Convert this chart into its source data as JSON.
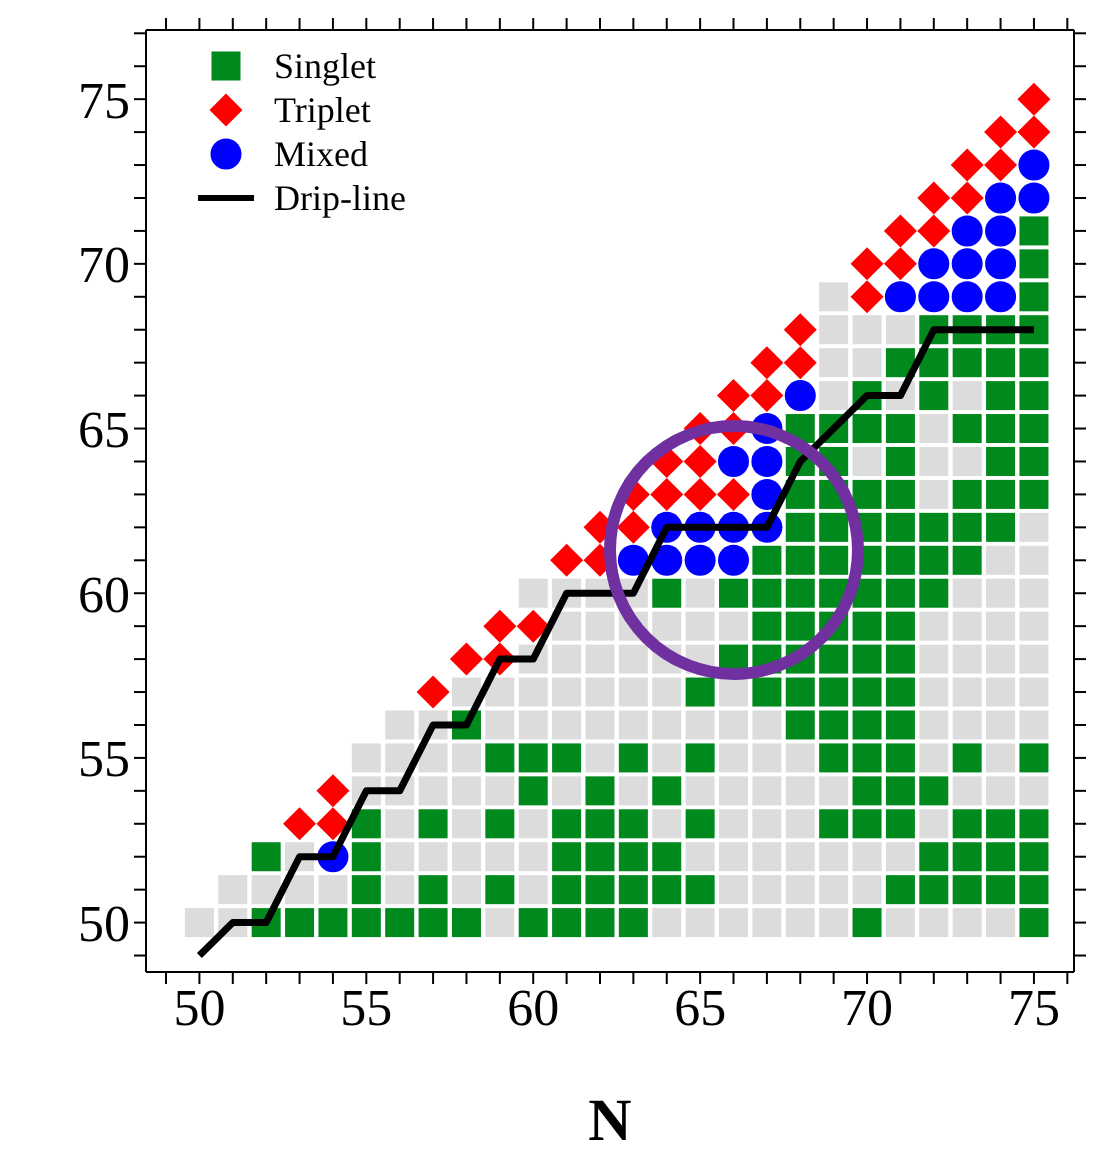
{
  "chart_data": {
    "type": "scatter",
    "xlabel": "N",
    "xlim": [
      48.4,
      76.2
    ],
    "ylim": [
      48.5,
      77.1
    ],
    "xticks": [
      {
        "value": 49,
        "label": null
      },
      50,
      {
        "value": 51,
        "label": null
      },
      {
        "value": 52,
        "label": null
      },
      {
        "value": 53,
        "label": null
      },
      {
        "value": 54,
        "label": null
      },
      55,
      {
        "value": 56,
        "label": null
      },
      {
        "value": 57,
        "label": null
      },
      {
        "value": 58,
        "label": null
      },
      {
        "value": 59,
        "label": null
      },
      60,
      {
        "value": 61,
        "label": null
      },
      {
        "value": 62,
        "label": null
      },
      {
        "value": 63,
        "label": null
      },
      {
        "value": 64,
        "label": null
      },
      65,
      {
        "value": 66,
        "label": null
      },
      {
        "value": 67,
        "label": null
      },
      {
        "value": 68,
        "label": null
      },
      {
        "value": 69,
        "label": null
      },
      70,
      {
        "value": 71,
        "label": null
      },
      {
        "value": 72,
        "label": null
      },
      {
        "value": 73,
        "label": null
      },
      {
        "value": 74,
        "label": null
      },
      75,
      {
        "value": 76,
        "label": null
      }
    ],
    "yticks": [
      {
        "value": 49,
        "label": null
      },
      50,
      {
        "value": 51,
        "label": null
      },
      {
        "value": 52,
        "label": null
      },
      {
        "value": 53,
        "label": null
      },
      {
        "value": 54,
        "label": null
      },
      55,
      {
        "value": 56,
        "label": null
      },
      {
        "value": 57,
        "label": null
      },
      {
        "value": 58,
        "label": null
      },
      {
        "value": 59,
        "label": null
      },
      60,
      {
        "value": 61,
        "label": null
      },
      {
        "value": 62,
        "label": null
      },
      {
        "value": 63,
        "label": null
      },
      {
        "value": 64,
        "label": null
      },
      65,
      {
        "value": 66,
        "label": null
      },
      {
        "value": 67,
        "label": null
      },
      {
        "value": 68,
        "label": null
      },
      {
        "value": 69,
        "label": null
      },
      70,
      {
        "value": 71,
        "label": null
      },
      {
        "value": 72,
        "label": null
      },
      {
        "value": 73,
        "label": null
      },
      {
        "value": 74,
        "label": null
      },
      75,
      {
        "value": 76,
        "label": null
      },
      {
        "value": 77,
        "label": null
      }
    ],
    "legend": "top left",
    "grid": false,
    "series": [
      {
        "marker": "square",
        "color": "#dcdcdc",
        "x": [
          50,
          51,
          59,
          64,
          65,
          66,
          67,
          68,
          69,
          71,
          72,
          73,
          74,
          51,
          52,
          53,
          54,
          56,
          58,
          60,
          66,
          67,
          68,
          69,
          70,
          53,
          56,
          57,
          58,
          59,
          60,
          65,
          66,
          67,
          68,
          69,
          70,
          71,
          56,
          58,
          60,
          64,
          66,
          67,
          68,
          72,
          55,
          56,
          57,
          58,
          59,
          61,
          63,
          65,
          66,
          67,
          68,
          69,
          73,
          74,
          75,
          55,
          56,
          57,
          58,
          62,
          64,
          66,
          67,
          68,
          72,
          74,
          56,
          57,
          59,
          60,
          61,
          62,
          63,
          64,
          65,
          66,
          67,
          72,
          73,
          74,
          75,
          58,
          59,
          60,
          61,
          62,
          63,
          64,
          66,
          72,
          73,
          74,
          75,
          60,
          61,
          62,
          63,
          64,
          65,
          72,
          73,
          74,
          75,
          61,
          62,
          63,
          64,
          65,
          66,
          72,
          73,
          74,
          75,
          60,
          61,
          62,
          63,
          65,
          73,
          74,
          75,
          74,
          75,
          75,
          72,
          70,
          72,
          73,
          72,
          69,
          71,
          73,
          69,
          70,
          69,
          70,
          71,
          69
        ],
        "values": [
          50,
          50,
          50,
          50,
          50,
          50,
          50,
          50,
          50,
          50,
          50,
          50,
          50,
          51,
          51,
          51,
          51,
          51,
          51,
          51,
          51,
          51,
          51,
          51,
          51,
          52,
          52,
          52,
          52,
          52,
          52,
          52,
          52,
          52,
          52,
          52,
          52,
          52,
          53,
          53,
          53,
          53,
          53,
          53,
          53,
          53,
          54,
          54,
          54,
          54,
          54,
          54,
          54,
          54,
          54,
          54,
          54,
          54,
          54,
          54,
          54,
          55,
          55,
          55,
          55,
          55,
          55,
          55,
          55,
          55,
          55,
          55,
          56,
          56,
          56,
          56,
          56,
          56,
          56,
          56,
          56,
          56,
          56,
          56,
          56,
          56,
          56,
          57,
          57,
          57,
          57,
          57,
          57,
          57,
          57,
          57,
          57,
          57,
          57,
          58,
          58,
          58,
          58,
          58,
          58,
          58,
          58,
          58,
          58,
          59,
          59,
          59,
          59,
          59,
          59,
          59,
          59,
          59,
          59,
          60,
          60,
          60,
          60,
          60,
          60,
          60,
          60,
          61,
          61,
          62,
          63,
          64,
          64,
          64,
          65,
          66,
          66,
          66,
          67,
          67,
          68,
          68,
          68,
          69
        ]
      },
      {
        "name": "Singlet",
        "marker": "square",
        "color": "#008a1e",
        "x": [
          52,
          53,
          54,
          55,
          56,
          57,
          58,
          60,
          61,
          62,
          63,
          70,
          75,
          55,
          57,
          59,
          61,
          62,
          63,
          64,
          65,
          71,
          72,
          73,
          74,
          75,
          52,
          55,
          61,
          62,
          63,
          64,
          72,
          73,
          74,
          75,
          55,
          57,
          59,
          61,
          62,
          63,
          65,
          69,
          70,
          71,
          73,
          74,
          75,
          60,
          62,
          64,
          70,
          71,
          72,
          59,
          60,
          61,
          63,
          65,
          69,
          70,
          71,
          73,
          75,
          58,
          68,
          69,
          70,
          71,
          65,
          67,
          68,
          69,
          70,
          71,
          66,
          67,
          68,
          69,
          70,
          71,
          67,
          68,
          69,
          70,
          71,
          64,
          66,
          67,
          68,
          69,
          70,
          71,
          72,
          67,
          68,
          69,
          70,
          71,
          72,
          73,
          68,
          69,
          70,
          71,
          72,
          73,
          74,
          68,
          69,
          70,
          71,
          73,
          74,
          75,
          68,
          69,
          71,
          74,
          75,
          68,
          69,
          70,
          71,
          73,
          74,
          75,
          70,
          72,
          74,
          75,
          71,
          72,
          73,
          74,
          75,
          72,
          73,
          74,
          75,
          75,
          75,
          75
        ],
        "values": [
          50,
          50,
          50,
          50,
          50,
          50,
          50,
          50,
          50,
          50,
          50,
          50,
          50,
          51,
          51,
          51,
          51,
          51,
          51,
          51,
          51,
          51,
          51,
          51,
          51,
          51,
          52,
          52,
          52,
          52,
          52,
          52,
          52,
          52,
          52,
          52,
          53,
          53,
          53,
          53,
          53,
          53,
          53,
          53,
          53,
          53,
          53,
          53,
          53,
          54,
          54,
          54,
          54,
          54,
          54,
          55,
          55,
          55,
          55,
          55,
          55,
          55,
          55,
          55,
          55,
          56,
          56,
          56,
          56,
          56,
          57,
          57,
          57,
          57,
          57,
          57,
          58,
          58,
          58,
          58,
          58,
          58,
          59,
          59,
          59,
          59,
          59,
          60,
          60,
          60,
          60,
          60,
          60,
          60,
          60,
          61,
          61,
          61,
          61,
          61,
          61,
          61,
          62,
          62,
          62,
          62,
          62,
          62,
          62,
          63,
          63,
          63,
          63,
          63,
          63,
          63,
          64,
          64,
          64,
          64,
          64,
          65,
          65,
          65,
          65,
          65,
          65,
          65,
          66,
          66,
          66,
          66,
          67,
          67,
          67,
          67,
          67,
          68,
          68,
          68,
          68,
          69,
          70,
          71
        ]
      },
      {
        "name": "Triplet",
        "marker": "diamond",
        "color": "#ff0000",
        "x": [
          53,
          54,
          54,
          57,
          58,
          59,
          59,
          60,
          61,
          62,
          62,
          63,
          63,
          64,
          65,
          66,
          64,
          65,
          65,
          66,
          66,
          67,
          67,
          68,
          68,
          70,
          70,
          71,
          71,
          72,
          72,
          73,
          73,
          74,
          74,
          75,
          75
        ],
        "values": [
          53,
          53,
          54,
          57,
          58,
          58,
          59,
          59,
          61,
          61,
          62,
          62,
          63,
          63,
          63,
          63,
          64,
          64,
          65,
          65,
          66,
          66,
          67,
          67,
          68,
          69,
          70,
          70,
          71,
          71,
          72,
          72,
          73,
          73,
          74,
          74,
          75
        ]
      },
      {
        "name": "Mixed",
        "marker": "circle",
        "color": "#0000ff",
        "x": [
          54,
          63,
          64,
          65,
          66,
          64,
          65,
          66,
          67,
          67,
          66,
          67,
          67,
          68,
          71,
          72,
          73,
          74,
          72,
          73,
          74,
          73,
          74,
          74,
          75,
          75
        ],
        "values": [
          52,
          61,
          61,
          61,
          61,
          62,
          62,
          62,
          62,
          63,
          64,
          64,
          65,
          66,
          69,
          69,
          69,
          69,
          70,
          70,
          70,
          71,
          71,
          72,
          72,
          73
        ]
      },
      {
        "type": "line",
        "name": "Drip-line",
        "color": "#000000",
        "line_style": "solid",
        "x": [
          50,
          51,
          52,
          53,
          54,
          55,
          56,
          57,
          58,
          59,
          60,
          61,
          63,
          64,
          67,
          68,
          70,
          71,
          72,
          75
        ],
        "values": [
          49,
          50,
          50,
          52,
          52,
          54,
          54,
          56,
          56,
          58,
          58,
          60,
          60,
          62,
          62,
          64,
          66,
          66,
          68,
          68
        ]
      }
    ]
  }
}
